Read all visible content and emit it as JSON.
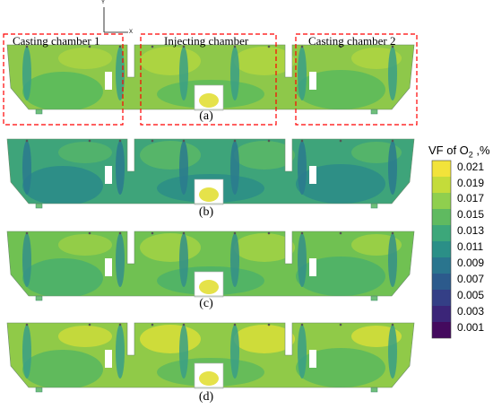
{
  "panels": [
    {
      "caption": "(a)",
      "zones": [
        "Casting chamber 1",
        "Injecting chamber",
        "Casting chamber 2"
      ]
    },
    {
      "caption": "(b)"
    },
    {
      "caption": "(c)"
    },
    {
      "caption": "(d)"
    }
  ],
  "axes": {
    "y_label": "Y",
    "x_label": "X"
  },
  "colorbar": {
    "title_prefix": "VF of O",
    "title_sub": "2",
    "title_suffix": " ,%",
    "ticks": [
      "0.021",
      "0.019",
      "0.017",
      "0.015",
      "0.013",
      "0.011",
      "0.009",
      "0.007",
      "0.005",
      "0.003",
      "0.001"
    ],
    "colors": [
      "#f2e33a",
      "#c4dc3a",
      "#8fcf4e",
      "#5fba60",
      "#3ca77a",
      "#2b8f87",
      "#2a758e",
      "#2c5a8c",
      "#343f86",
      "#3b2578",
      "#440a5e"
    ]
  },
  "field_colors": {
    "a": {
      "base": "#8ec84a",
      "cool": "#5aba5c",
      "warm": "#b2d640",
      "plume": "#3a9f86"
    },
    "b": {
      "base": "#3ea47a",
      "cool": "#2b8c88",
      "warm": "#5ab866",
      "plume": "#2a7a8e"
    },
    "c": {
      "base": "#70c152",
      "cool": "#4bb06a",
      "warm": "#a2d244",
      "plume": "#348f88"
    },
    "d": {
      "base": "#90ca48",
      "cool": "#5bb85e",
      "warm": "#d9df38",
      "plume": "#3a9f86"
    }
  }
}
